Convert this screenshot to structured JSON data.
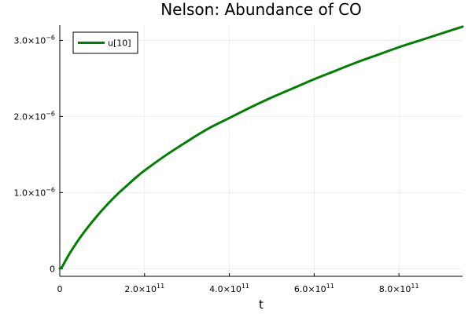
{
  "chart_data": {
    "type": "line",
    "title": "Nelson: Abundance of CO",
    "xlabel": "t",
    "ylabel": "",
    "xlim": [
      0,
      950000000000.0
    ],
    "ylim": [
      -1e-07,
      3.2e-06
    ],
    "grid": true,
    "legend_position": "top-left",
    "x_ticks": [
      {
        "value": 0,
        "mantissa": "0",
        "exponent": ""
      },
      {
        "value": 200000000000.0,
        "mantissa": "2.0×10",
        "exponent": "11"
      },
      {
        "value": 400000000000.0,
        "mantissa": "4.0×10",
        "exponent": "11"
      },
      {
        "value": 600000000000.0,
        "mantissa": "6.0×10",
        "exponent": "11"
      },
      {
        "value": 800000000000.0,
        "mantissa": "8.0×10",
        "exponent": "11"
      }
    ],
    "y_ticks": [
      {
        "value": 0,
        "mantissa": "0",
        "exponent": ""
      },
      {
        "value": 1e-06,
        "mantissa": "1.0×10",
        "exponent": "−6"
      },
      {
        "value": 2e-06,
        "mantissa": "2.0×10",
        "exponent": "−6"
      },
      {
        "value": 3e-06,
        "mantissa": "3.0×10",
        "exponent": "−6"
      }
    ],
    "series": [
      {
        "name": "u[10]",
        "color": "#008000",
        "x": [
          0,
          5000000000.0,
          10000000000.0,
          20000000000.0,
          30000000000.0,
          40000000000.0,
          50000000000.0,
          60000000000.0,
          80000000000.0,
          100000000000.0,
          120000000000.0,
          140000000000.0,
          160000000000.0,
          180000000000.0,
          200000000000.0,
          250000000000.0,
          300000000000.0,
          350000000000.0,
          400000000000.0,
          450000000000.0,
          500000000000.0,
          550000000000.0,
          600000000000.0,
          650000000000.0,
          700000000000.0,
          750000000000.0,
          800000000000.0,
          850000000000.0,
          900000000000.0,
          950000000000.0
        ],
        "y": [
          0,
          2e-08,
          7e-08,
          1.7e-07,
          2.6e-07,
          3.45e-07,
          4.25e-07,
          5e-07,
          6.4e-07,
          7.7e-07,
          8.9e-07,
          1e-06,
          1.1e-06,
          1.2e-06,
          1.29e-06,
          1.49e-06,
          1.67e-06,
          1.84e-06,
          1.98e-06,
          2.12e-06,
          2.25e-06,
          2.37e-06,
          2.49e-06,
          2.6e-06,
          2.71e-06,
          2.81e-06,
          2.91e-06,
          3e-06,
          3.09e-06,
          3.18e-06
        ]
      }
    ]
  }
}
